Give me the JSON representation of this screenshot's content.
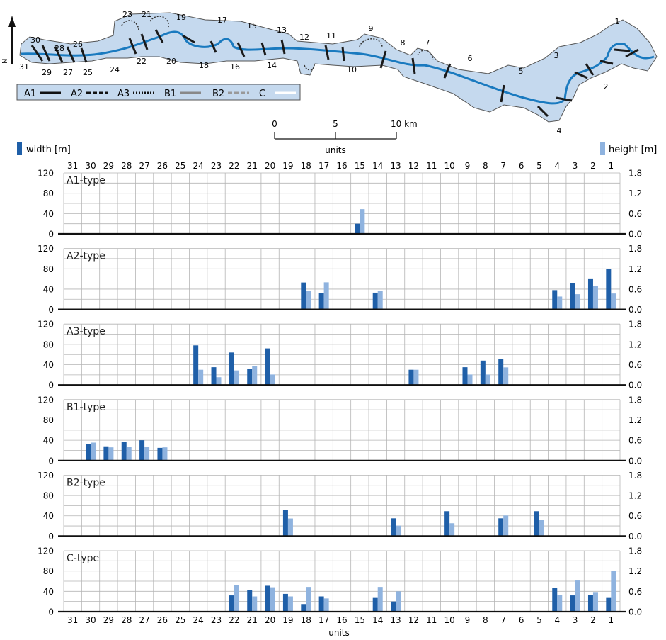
{
  "map": {
    "north_label": "N",
    "unit_labels": [
      "1",
      "2",
      "3",
      "4",
      "5",
      "6",
      "7",
      "8",
      "9",
      "10",
      "11",
      "12",
      "13",
      "14",
      "15",
      "16",
      "17",
      "18",
      "19",
      "20",
      "21",
      "22",
      "23",
      "24",
      "25",
      "26",
      "27",
      "28",
      "29",
      "30",
      "31"
    ],
    "legend": [
      {
        "label": "A1",
        "style": "solid-black"
      },
      {
        "label": "A2",
        "style": "dashed-black"
      },
      {
        "label": "A3",
        "style": "dotted-black"
      },
      {
        "label": "B1",
        "style": "solid-gray"
      },
      {
        "label": "B2",
        "style": "dashed-gray"
      },
      {
        "label": "C",
        "style": "solid-white"
      }
    ],
    "scale_bar": {
      "ticks": [
        "0",
        "5",
        "10 km"
      ]
    },
    "colors": {
      "valley": "#c5d9ee",
      "valley_edge": "#555555",
      "river": "#1a7abf",
      "cut": "#1a1a1a"
    }
  },
  "legend": {
    "width_label": "width [m]",
    "height_label": "height [m]",
    "width_color": "#1f5fa8",
    "height_color": "#8fb3df"
  },
  "x_axis_title": "units",
  "x_axis_title_top": "units",
  "chart_data": {
    "type": "bar",
    "categories": [
      "31",
      "30",
      "29",
      "28",
      "27",
      "26",
      "25",
      "24",
      "23",
      "22",
      "21",
      "20",
      "19",
      "18",
      "17",
      "16",
      "15",
      "14",
      "13",
      "12",
      "11",
      "10",
      "9",
      "8",
      "7",
      "6",
      "5",
      "4",
      "3",
      "2",
      "1"
    ],
    "left_axis": {
      "label": "width [m]",
      "ylim": [
        0,
        120
      ],
      "ticks": [
        "0",
        "40",
        "80",
        "120"
      ]
    },
    "right_axis": {
      "label": "height [m]",
      "ylim": [
        0,
        1.8
      ],
      "ticks": [
        "0.0",
        "0.6",
        "1.2",
        "1.8"
      ]
    },
    "grid": true,
    "panels": [
      {
        "title": "A1-type",
        "width": {
          "15": 20
        },
        "height": {
          "15": 0.73
        }
      },
      {
        "title": "A2-type",
        "width": {
          "18": 53,
          "17": 32,
          "14": 33,
          "4": 38,
          "3": 52,
          "2": 61,
          "1": 80
        },
        "height": {
          "18": 0.55,
          "17": 0.8,
          "14": 0.55,
          "4": 0.38,
          "3": 0.45,
          "2": 0.7,
          "1": 0.47
        }
      },
      {
        "title": "A3-type",
        "width": {
          "24": 78,
          "23": 35,
          "22": 64,
          "21": 32,
          "20": 72,
          "12": 30,
          "9": 35,
          "8": 48,
          "7": 51
        },
        "height": {
          "24": 0.45,
          "23": 0.23,
          "22": 0.43,
          "21": 0.55,
          "20": 0.31,
          "12": 0.45,
          "9": 0.31,
          "8": 0.31,
          "7": 0.52
        }
      },
      {
        "title": "B1-type",
        "width": {
          "30": 33,
          "29": 28,
          "28": 37,
          "27": 40,
          "26": 25
        },
        "height": {
          "30": 0.53,
          "29": 0.39,
          "28": 0.41,
          "27": 0.41,
          "26": 0.39
        }
      },
      {
        "title": "B2-type",
        "width": {
          "19": 52,
          "13": 35,
          "10": 49,
          "7": 35,
          "5": 49
        },
        "height": {
          "19": 0.52,
          "13": 0.31,
          "10": 0.38,
          "7": 0.61,
          "5": 0.48
        }
      },
      {
        "title": "C-type",
        "width": {
          "22": 32,
          "21": 42,
          "20": 51,
          "19": 35,
          "18": 15,
          "17": 30,
          "14": 27,
          "13": 20,
          "4": 47,
          "3": 32,
          "2": 33,
          "1": 27
        },
        "height": {
          "22": 0.78,
          "21": 0.45,
          "20": 0.72,
          "19": 0.45,
          "18": 0.73,
          "17": 0.39,
          "14": 0.73,
          "13": 0.6,
          "4": 0.5,
          "3": 0.92,
          "2": 0.58,
          "1": 1.21
        }
      }
    ]
  }
}
